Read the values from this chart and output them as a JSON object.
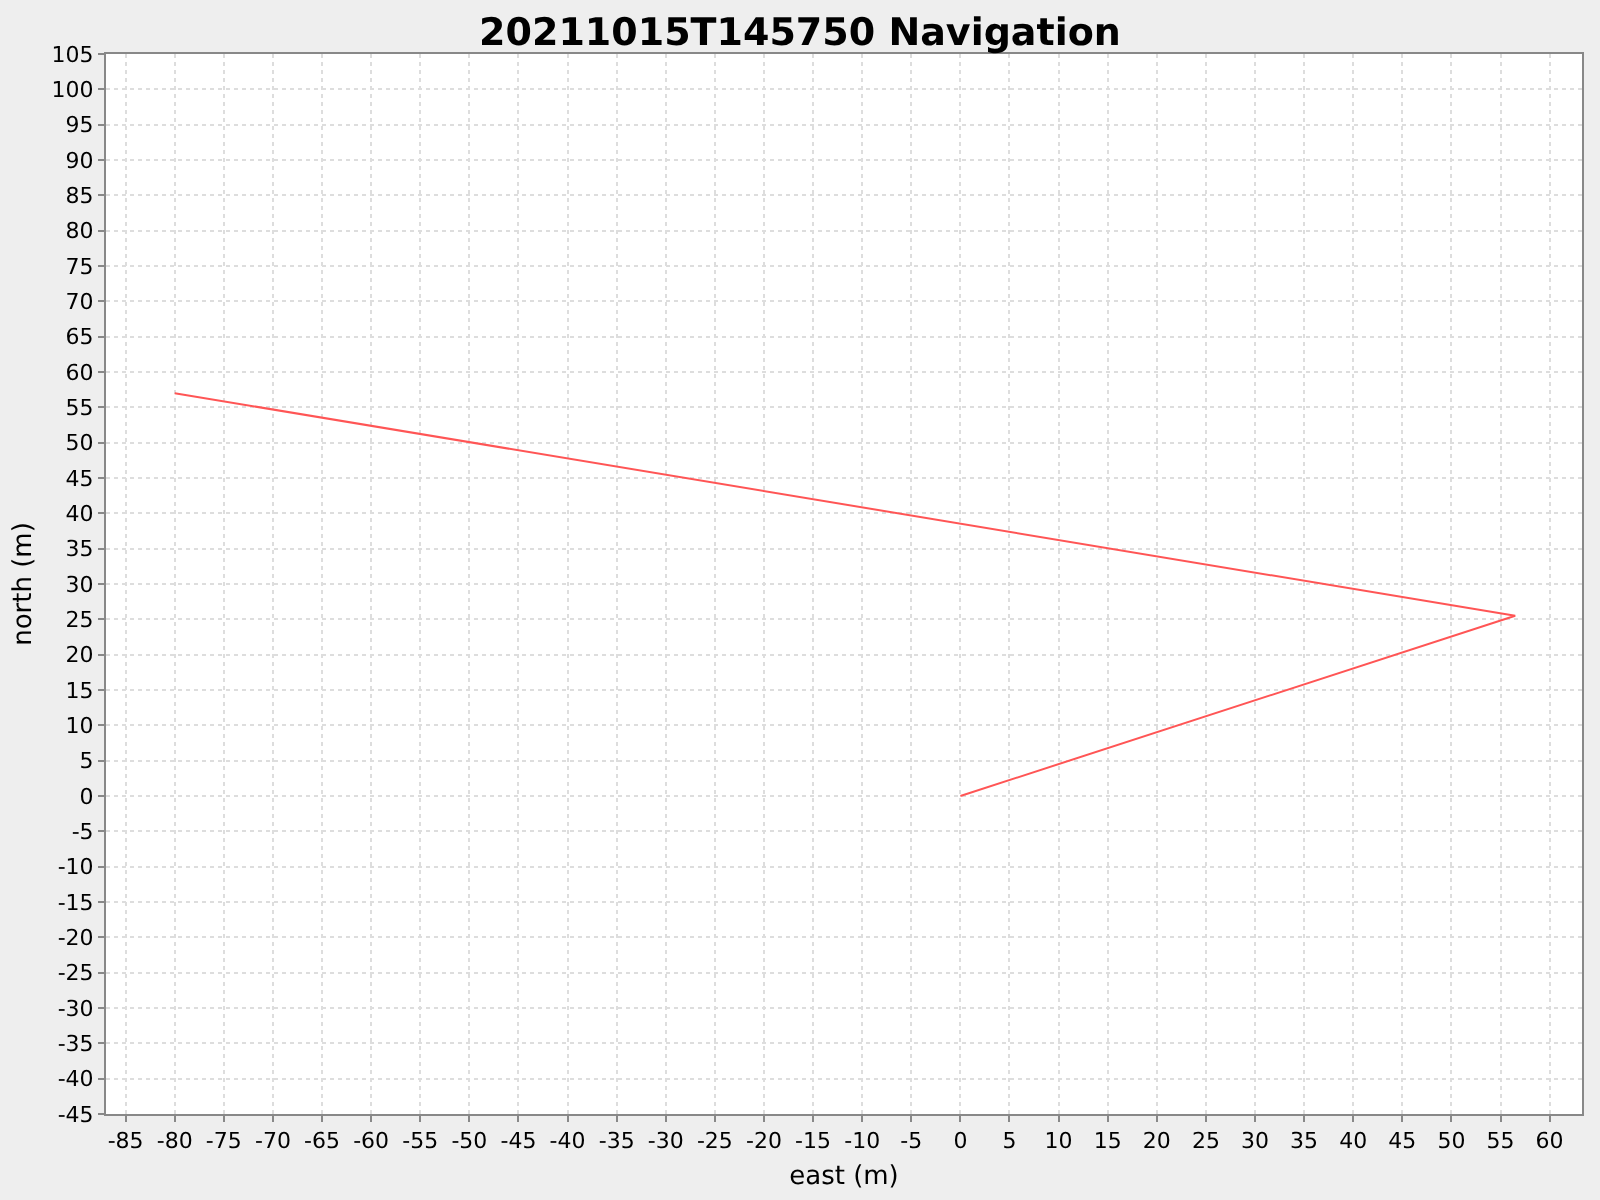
{
  "chart_data": {
    "type": "line",
    "title": "20211015T145750 Navigation",
    "xlabel": "east (m)",
    "ylabel": "north (m)",
    "series": [
      {
        "color": "#ff5555",
        "x": [
          -80,
          56.5,
          0
        ],
        "values": [
          57,
          25.5,
          0
        ]
      }
    ],
    "xlim": [
      -87,
      63.3
    ],
    "xticks": [
      -85,
      -80,
      -75,
      -70,
      -65,
      -60,
      -55,
      -50,
      -45,
      -40,
      -35,
      -30,
      -25,
      -20,
      -15,
      -10,
      -5,
      0,
      5,
      10,
      15,
      20,
      25,
      30,
      35,
      40,
      45,
      50,
      55,
      60
    ],
    "ylim": [
      -45,
      105
    ],
    "yticks": [
      -45,
      -40,
      -35,
      -30,
      -25,
      -20,
      -15,
      -10,
      -5,
      0,
      5,
      10,
      15,
      20,
      25,
      30,
      35,
      40,
      45,
      50,
      55,
      60,
      65,
      70,
      75,
      80,
      85,
      90,
      95,
      100,
      105
    ],
    "grid": true,
    "marker": "none",
    "line_style": "solid"
  }
}
